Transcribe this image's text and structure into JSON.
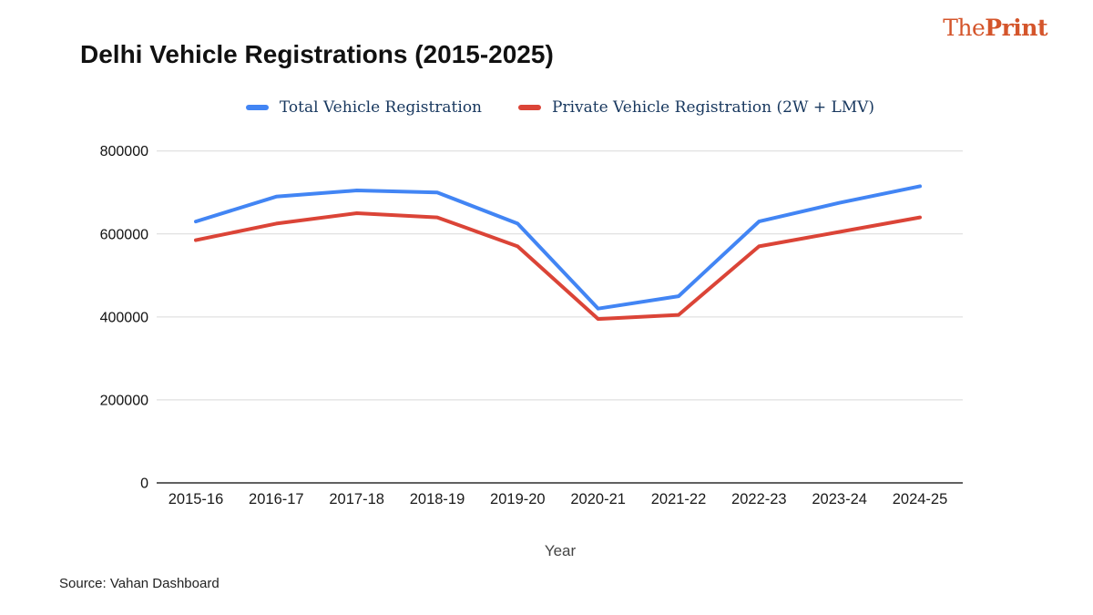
{
  "branding": {
    "logo_the": "The",
    "logo_print": "Print",
    "logo_color": "#d4552b"
  },
  "header": {
    "title": "Delhi Vehicle Registrations (2015-2025)"
  },
  "source": {
    "text": "Source: Vahan Dashboard"
  },
  "chart_data": {
    "type": "line",
    "title": "Delhi Vehicle Registrations (2015-2025)",
    "categories": [
      "2015-16",
      "2016-17",
      "2017-18",
      "2018-19",
      "2019-20",
      "2020-21",
      "2021-22",
      "2022-23",
      "2023-24",
      "2024-25"
    ],
    "series": [
      {
        "name": "Total Vehicle Registration",
        "color": "#4285f4",
        "values": [
          630000,
          690000,
          705000,
          700000,
          625000,
          420000,
          450000,
          630000,
          675000,
          715000
        ]
      },
      {
        "name": "Private Vehicle Registration (2W + LMV)",
        "color": "#db4437",
        "values": [
          585000,
          625000,
          650000,
          640000,
          570000,
          395000,
          405000,
          570000,
          605000,
          640000
        ]
      }
    ],
    "xlabel": "Year",
    "ylabel": "",
    "ylim": [
      0,
      800000
    ],
    "yticks": [
      0,
      200000,
      400000,
      600000,
      800000
    ],
    "grid": true,
    "legend_position": "top",
    "gridline_color": "#d9d9d9",
    "baseline_color": "#616161"
  }
}
